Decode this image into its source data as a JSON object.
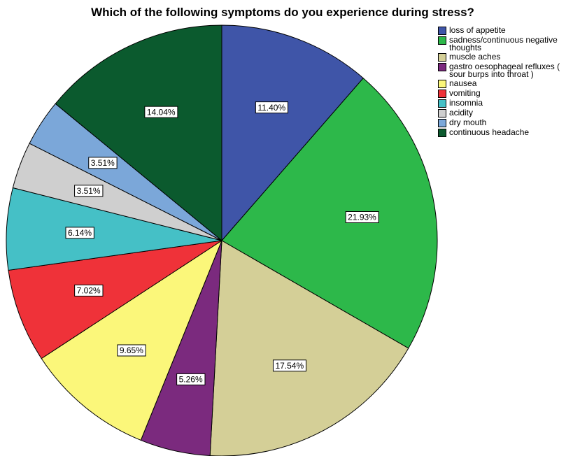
{
  "chart_data": {
    "type": "pie",
    "title": "Which of the following symptoms do you experience during stress?",
    "categories": [
      "loss of appetite",
      "sadness/continuous negative thoughts",
      "muscle aches",
      "gastro oesophageal refluxes ( sour burps into throat )",
      "nausea",
      "vomiting",
      "insomnia",
      "acidity",
      "dry mouth",
      "continuous headache"
    ],
    "values": [
      11.4,
      21.93,
      17.54,
      5.26,
      9.65,
      7.02,
      6.14,
      3.51,
      3.51,
      14.04
    ],
    "value_labels": [
      "11.40%",
      "21.93%",
      "17.54%",
      "5.26%",
      "9.65%",
      "7.02%",
      "6.14%",
      "3.51%",
      "3.51%",
      "14.04%"
    ],
    "colors": [
      "#3f55a8",
      "#2db84a",
      "#d4cf97",
      "#7b2a7e",
      "#fbf77a",
      "#ef3239",
      "#45c0c6",
      "#cfcfcf",
      "#7ba7d9",
      "#0b5a2e"
    ],
    "legend": "right"
  }
}
